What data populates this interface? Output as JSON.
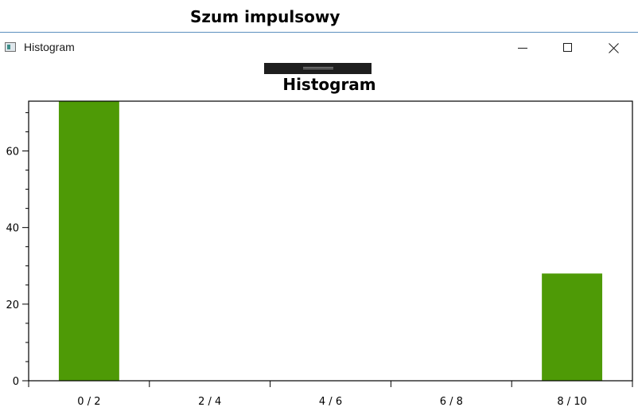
{
  "outer_window": {
    "title": "Szum impulsowy"
  },
  "window": {
    "title": "Histogram",
    "controls": {
      "minimize_icon": "minimize-icon",
      "maximize_icon": "maximize-icon",
      "close_icon": "close-icon"
    },
    "app_icon": "chart-window-icon"
  },
  "colors": {
    "bar": "#4e9a06",
    "accent_line": "#5b8fbf"
  },
  "chart_data": {
    "type": "bar",
    "title": "Histogram",
    "categories": [
      "0 / 2",
      "2 / 4",
      "4 / 6",
      "6 / 8",
      "8 / 10"
    ],
    "values": [
      73,
      0,
      0,
      0,
      28
    ],
    "ylim": [
      0,
      73
    ],
    "yticks": [
      0,
      20,
      40,
      60
    ],
    "xlabel": "",
    "ylabel": "",
    "grid": false,
    "legend": "none"
  }
}
